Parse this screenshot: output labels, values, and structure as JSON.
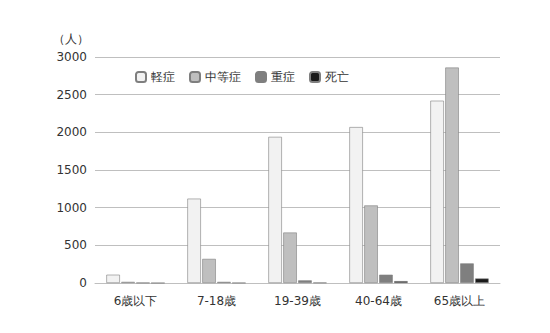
{
  "chart_data": {
    "type": "bar",
    "ylabel": "（人）",
    "categories": [
      "6歳以下",
      "7-18歳",
      "19-39歳",
      "40-64歳",
      "65歳以上"
    ],
    "series": [
      {
        "name": "軽症",
        "color": "#f2f2f2",
        "values": [
          110,
          1120,
          1940,
          2070,
          2420
        ]
      },
      {
        "name": "中等症",
        "color": "#bfbfbf",
        "values": [
          15,
          320,
          670,
          1030,
          2860
        ]
      },
      {
        "name": "重症",
        "color": "#7f7f7f",
        "values": [
          3,
          15,
          35,
          110,
          260
        ]
      },
      {
        "name": "死亡",
        "color": "#1a1a1a",
        "values": [
          0,
          2,
          5,
          25,
          60
        ]
      }
    ],
    "ylim": [
      0,
      3000
    ],
    "yticks": [
      0,
      500,
      1000,
      1500,
      2000,
      2500,
      3000
    ],
    "grid": true,
    "legend": "top-left"
  }
}
